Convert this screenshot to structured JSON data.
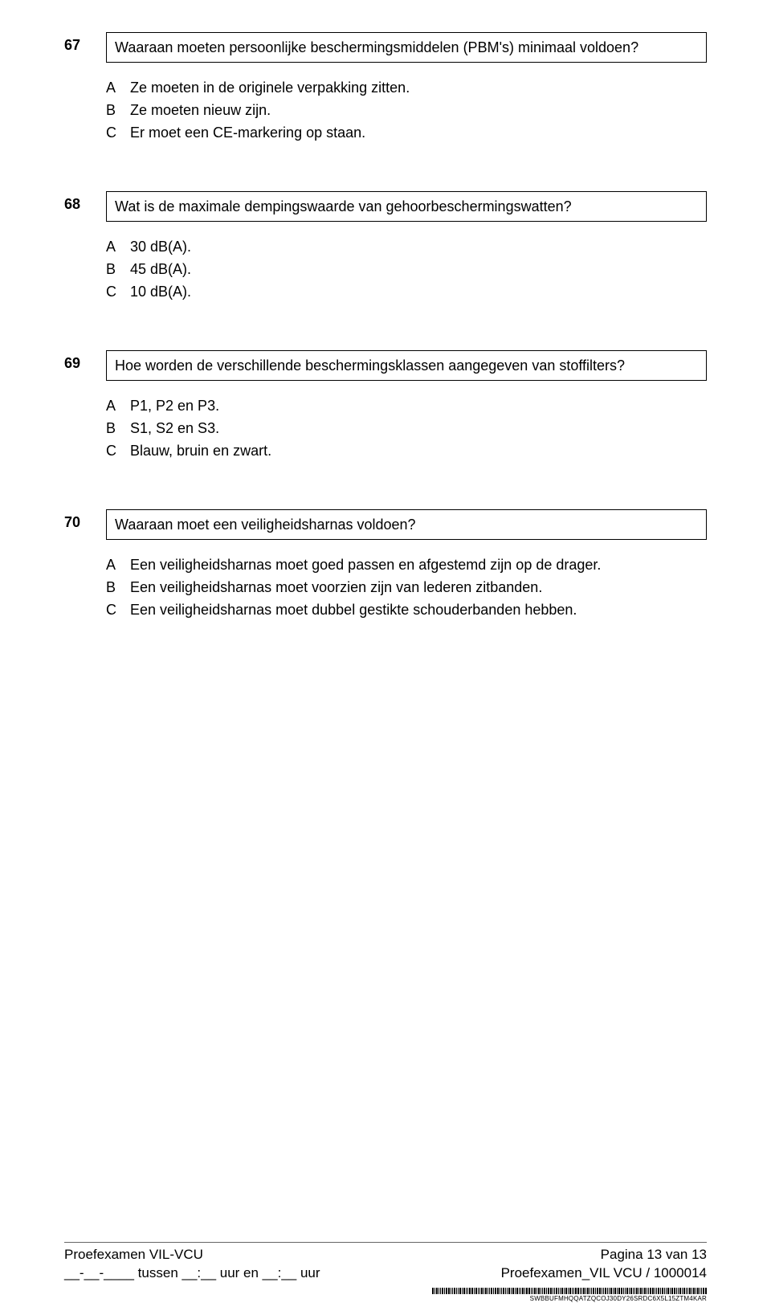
{
  "questions": [
    {
      "number": "67",
      "text": "Waaraan moeten persoonlijke beschermingsmiddelen (PBM's) minimaal voldoen?",
      "answers": [
        {
          "letter": "A",
          "text": "Ze moeten in de originele verpakking zitten."
        },
        {
          "letter": "B",
          "text": "Ze moeten nieuw zijn."
        },
        {
          "letter": "C",
          "text": "Er moet een CE-markering op staan."
        }
      ]
    },
    {
      "number": "68",
      "text": "Wat is de maximale dempingswaarde van gehoorbeschermingswatten?",
      "answers": [
        {
          "letter": "A",
          "text": "30 dB(A)."
        },
        {
          "letter": "B",
          "text": "45 dB(A)."
        },
        {
          "letter": "C",
          "text": "10 dB(A)."
        }
      ]
    },
    {
      "number": "69",
      "text": "Hoe worden de verschillende beschermingsklassen aangegeven van stoffilters?",
      "answers": [
        {
          "letter": "A",
          "text": "P1, P2 en P3."
        },
        {
          "letter": "B",
          "text": "S1, S2 en S3."
        },
        {
          "letter": "C",
          "text": "Blauw, bruin en zwart."
        }
      ]
    },
    {
      "number": "70",
      "text": "Waaraan moet een veiligheidsharnas voldoen?",
      "answers": [
        {
          "letter": "A",
          "text": "Een veiligheidsharnas moet goed passen en afgestemd zijn op de drager."
        },
        {
          "letter": "B",
          "text": "Een veiligheidsharnas moet voorzien zijn van lederen zitbanden."
        },
        {
          "letter": "C",
          "text": "Een veiligheidsharnas moet dubbel gestikte schouderbanden hebben."
        }
      ]
    }
  ],
  "footer": {
    "left_line1": "Proefexamen VIL-VCU",
    "left_line2": "__-__-____ tussen __:__ uur en __:__ uur",
    "right_line1": "Pagina 13 van 13",
    "right_line2": "Proefexamen_VIL VCU  /  1000014"
  },
  "barcode_text": "SWBBUFMHQQATZQCOJ30DY26SRDC6X5L15ZTM4KAR",
  "barcode_widths": [
    2,
    1,
    2,
    1,
    1,
    2,
    1,
    2,
    2,
    1,
    1,
    2,
    1,
    1,
    2,
    1,
    2,
    1,
    1,
    2,
    2,
    1,
    2,
    1,
    1,
    2,
    1,
    2,
    1,
    1,
    2,
    1,
    2,
    2,
    1,
    1,
    2,
    1,
    1,
    2,
    1,
    2,
    1,
    2,
    1,
    1,
    2,
    1,
    2,
    2,
    1,
    1,
    2,
    1,
    2,
    1,
    1,
    2,
    1,
    2,
    2,
    1,
    1,
    2,
    1,
    1,
    2,
    1,
    2,
    1,
    2,
    1,
    1,
    2,
    2,
    1,
    1,
    2,
    1,
    2,
    1,
    1,
    2,
    1,
    2,
    2,
    1,
    1,
    2,
    1,
    1,
    2,
    1,
    2,
    1,
    2,
    2,
    1,
    1,
    2,
    1,
    2,
    1,
    1,
    2,
    1,
    2,
    1,
    2,
    1,
    1,
    2,
    2,
    1,
    1,
    2,
    1,
    2,
    1,
    1,
    2,
    1,
    2,
    2,
    1,
    1,
    2,
    1,
    2,
    1,
    1,
    2,
    1,
    2,
    1,
    2,
    1,
    1,
    2,
    2
  ]
}
